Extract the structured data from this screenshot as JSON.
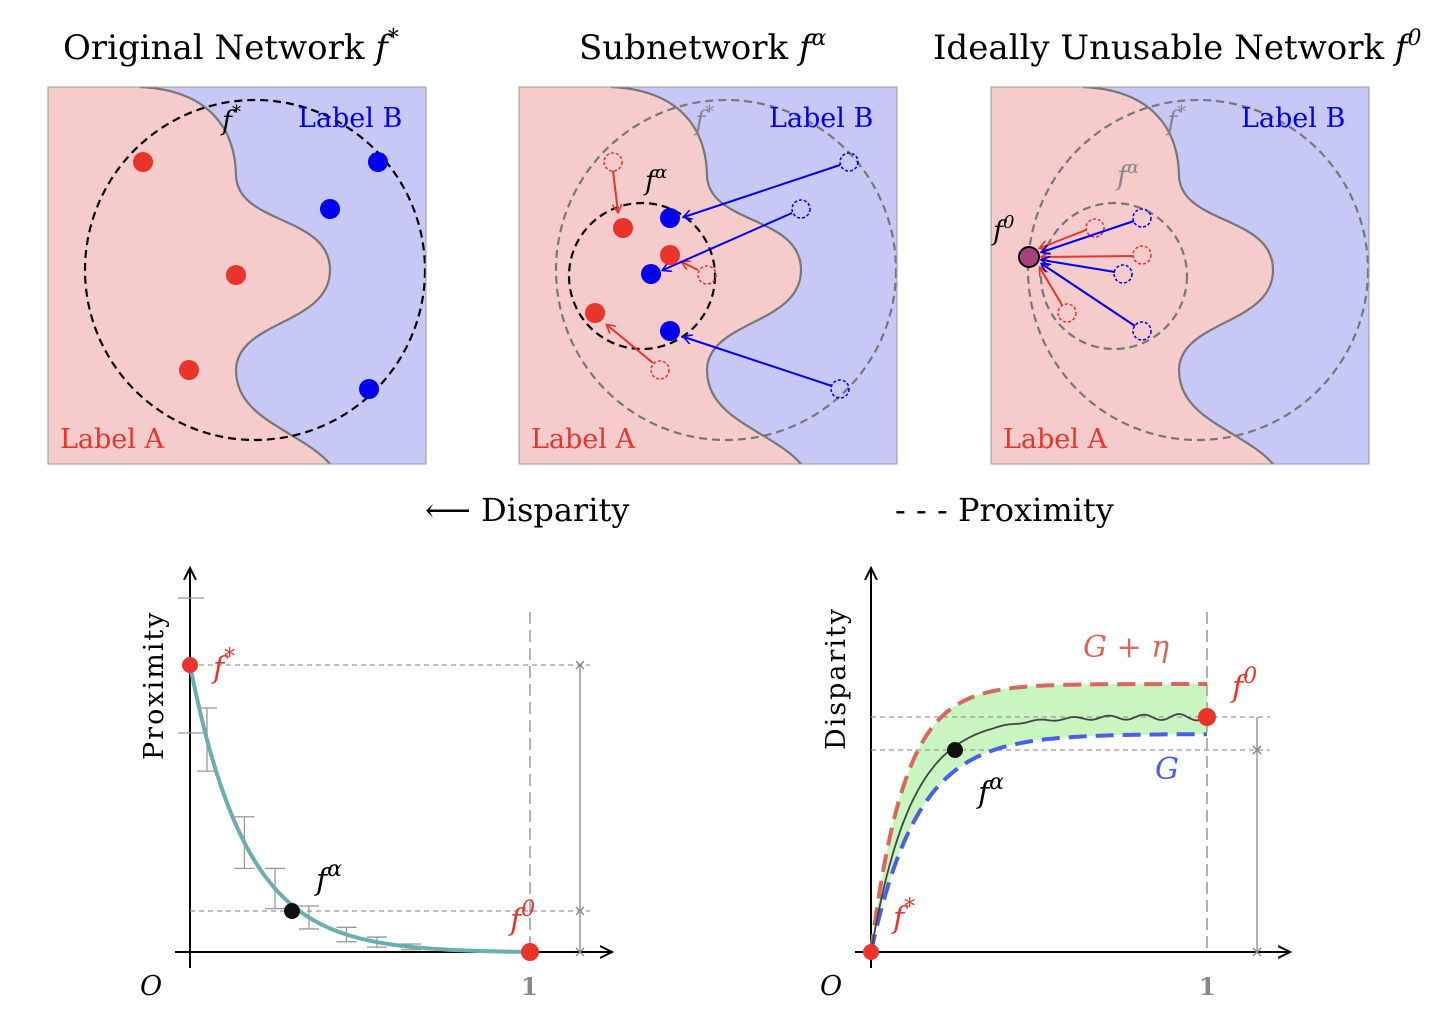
{
  "panels": {
    "original": {
      "title": "Original Network",
      "func": "f",
      "sup": "*",
      "label_a": "Label A",
      "label_b": "Label B",
      "circle_label": "f",
      "circle_label_sup": "*"
    },
    "subnetwork": {
      "title": "Subnetwork",
      "func": "f",
      "sup": "α",
      "label_a": "Label A",
      "label_b": "Label B",
      "outer_circle_label": "f",
      "outer_circle_label_sup": "*",
      "inner_circle_label": "f",
      "inner_circle_label_sup": "α"
    },
    "unusable": {
      "title": "Ideally Unusable Network",
      "func": "f",
      "sup": "0",
      "label_a": "Label A",
      "label_b": "Label B",
      "outer_circle_label": "f",
      "outer_circle_label_sup": "*",
      "mid_circle_label": "f",
      "mid_circle_label_sup": "α",
      "point_label": "f",
      "point_label_sup": "0"
    }
  },
  "legend": {
    "disparity_symbol": "⟵",
    "disparity": "Disparity",
    "proximity_symbol": "- - -",
    "proximity": "Proximity"
  },
  "charts": {
    "proximity": {
      "ylabel": "Proximity",
      "origin": "O",
      "x_tick": "1",
      "start_label": "f",
      "start_sup": "*",
      "mid_label": "f",
      "mid_sup": "α",
      "end_label": "f",
      "end_sup": "0"
    },
    "disparity": {
      "ylabel": "Disparity",
      "origin": "O",
      "x_tick": "1",
      "upper_label": "G + η",
      "lower_label": "G",
      "start_label": "f",
      "start_sup": "*",
      "mid_label": "f",
      "mid_sup": "α",
      "end_label": "f",
      "end_sup": "0"
    }
  },
  "colors": {
    "label_a_fill": "#f5cbcb",
    "label_b_fill": "#c8c8f7",
    "red": "#e8342a",
    "blue": "#0000ee",
    "teal": "#6aaeb0",
    "band": "#c8f5c0",
    "upper_dash": "#d9675e",
    "lower_dash": "#4a5ee8"
  },
  "chart_data": [
    {
      "type": "line",
      "x": [
        0,
        1
      ],
      "series": [
        {
          "values": [
            1,
            0
          ]
        }
      ],
      "ylabel": "Proximity",
      "xlim": [
        0,
        1
      ]
    },
    {
      "type": "area",
      "x": [
        0,
        1
      ],
      "series": [
        {
          "name": "G + η"
        },
        {
          "name": "G"
        }
      ],
      "ylabel": "Disparity",
      "xlim": [
        0,
        1
      ]
    }
  ]
}
